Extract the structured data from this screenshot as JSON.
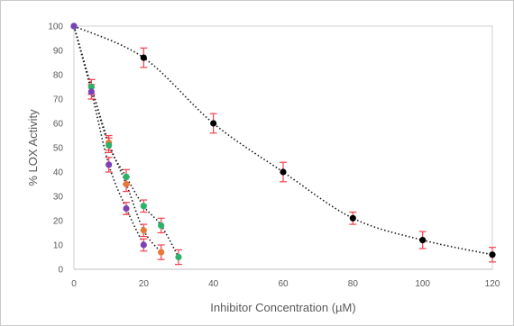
{
  "chart_data": {
    "type": "scatter",
    "title": "",
    "xlabel": "Inhibitor Concentration (µM)",
    "ylabel": "% LOX Activity",
    "xlim": [
      0,
      120
    ],
    "ylim": [
      0,
      100
    ],
    "x_ticks": [
      0,
      20,
      40,
      60,
      80,
      100,
      120
    ],
    "y_ticks": [
      0,
      10,
      20,
      30,
      40,
      50,
      60,
      70,
      80,
      90,
      100
    ],
    "grid": false,
    "trendlines": "dotted",
    "error_bar_color": "#f2414f",
    "series": [
      {
        "color": "#000000",
        "x": [
          0,
          20,
          40,
          60,
          80,
          100,
          120
        ],
        "y": [
          100,
          87,
          60,
          40,
          21,
          12,
          6
        ],
        "err": [
          0,
          4,
          4,
          4,
          2.5,
          3.5,
          3
        ]
      },
      {
        "color": "#e9773a",
        "x": [
          0,
          5,
          10,
          15,
          20,
          25
        ],
        "y": [
          100,
          75,
          52,
          35,
          16,
          7
        ],
        "err": [
          0,
          3,
          3,
          3,
          2.5,
          3
        ]
      },
      {
        "color": "#2ab368",
        "x": [
          0,
          5,
          10,
          15,
          20,
          25,
          30
        ],
        "y": [
          100,
          75,
          51,
          38,
          26,
          18,
          5
        ],
        "err": [
          0,
          3,
          3,
          3,
          2.5,
          3,
          3
        ]
      },
      {
        "color": "#7b42b8",
        "x": [
          0,
          5,
          10,
          15,
          20
        ],
        "y": [
          100,
          73,
          43,
          25,
          10
        ],
        "err": [
          0,
          3,
          3,
          2.5,
          2.5
        ]
      }
    ]
  }
}
